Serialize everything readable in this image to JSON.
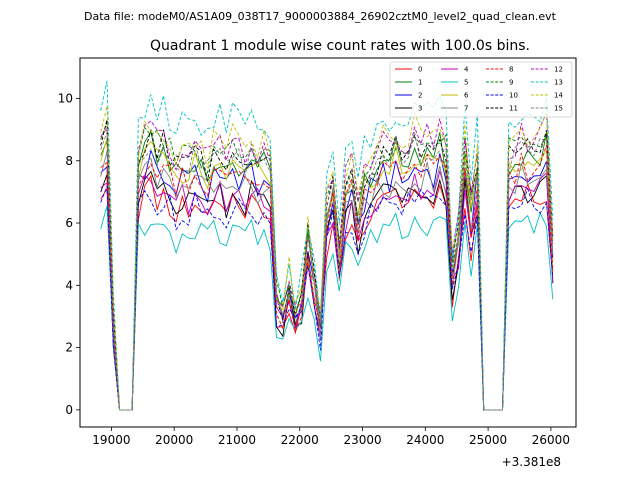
{
  "header": {
    "suptitle": "Data file: modeM0/AS1A09_038T17_9000003884_26902cztM0_level2_quad_clean.evt"
  },
  "chart_data": {
    "type": "line",
    "title": "Quadrant 1 module wise count rates with 100.0s bins.",
    "xlabel": "",
    "ylabel": "",
    "offset_label": "+3.381e8",
    "xlim": [
      18500,
      26400
    ],
    "ylim": [
      -0.55,
      11.3
    ],
    "xticks": [
      19000,
      20000,
      21000,
      22000,
      23000,
      24000,
      25000,
      26000
    ],
    "xtick_labels": [
      "19000",
      "20000",
      "21000",
      "22000",
      "23000",
      "24000",
      "25000",
      "26000"
    ],
    "yticks": [
      0,
      2,
      4,
      6,
      8,
      10
    ],
    "ytick_labels": [
      "0",
      "2",
      "4",
      "6",
      "8",
      "10"
    ],
    "legend_position": "upper-right",
    "x": [
      18830,
      18930,
      19030,
      19130,
      19230,
      19330,
      19430,
      19530,
      19630,
      19730,
      19830,
      19930,
      20030,
      20130,
      20230,
      20330,
      20430,
      20530,
      20630,
      20730,
      20830,
      20930,
      21030,
      21130,
      21230,
      21330,
      21430,
      21530,
      21630,
      21730,
      21830,
      21930,
      22030,
      22130,
      22230,
      22330,
      22430,
      22530,
      22630,
      22730,
      22830,
      22930,
      23030,
      23130,
      23230,
      23330,
      23430,
      23530,
      23630,
      23730,
      23830,
      23930,
      24030,
      24130,
      24230,
      24330,
      24430,
      24530,
      24630,
      24730,
      24830,
      24930,
      25030,
      25130,
      25230,
      25330,
      25430,
      25530,
      25630,
      25730,
      25830,
      25930,
      26030
    ],
    "base_profile": [
      7.0,
      7.3,
      2.4,
      0,
      0,
      0,
      6.5,
      7.0,
      7.2,
      6.8,
      6.9,
      6.6,
      6.3,
      6.6,
      6.4,
      6.7,
      6.5,
      6.3,
      6.6,
      6.7,
      6.4,
      6.8,
      6.6,
      6.5,
      6.7,
      6.4,
      6.6,
      6.3,
      3.0,
      2.6,
      3.5,
      2.6,
      3.0,
      4.5,
      3.4,
      2.2,
      5.3,
      6.1,
      4.0,
      5.9,
      6.2,
      5.1,
      6.0,
      6.3,
      6.4,
      6.7,
      6.6,
      6.9,
      6.8,
      6.7,
      7.0,
      6.8,
      6.9,
      6.7,
      7.1,
      6.6,
      3.7,
      4.7,
      6.8,
      5.2,
      6.5,
      0,
      0,
      0,
      0,
      6.6,
      6.7,
      6.9,
      6.8,
      7.0,
      6.9,
      7.1,
      4.2
    ],
    "series": [
      {
        "name": "0",
        "scale": 1.0,
        "jitter_seed": 11,
        "color": "#ff0000",
        "dash": "solid"
      },
      {
        "name": "1",
        "scale": 1.2,
        "jitter_seed": 23,
        "color": "#008000",
        "dash": "solid"
      },
      {
        "name": "2",
        "scale": 1.12,
        "jitter_seed": 31,
        "color": "#0000ff",
        "dash": "solid"
      },
      {
        "name": "3",
        "scale": 1.03,
        "jitter_seed": 47,
        "color": "#000000",
        "dash": "solid"
      },
      {
        "name": "4",
        "scale": 1.05,
        "jitter_seed": 53,
        "color": "#bf00bf",
        "dash": "solid"
      },
      {
        "name": "5",
        "scale": 0.86,
        "jitter_seed": 61,
        "color": "#00bfbf",
        "dash": "solid"
      },
      {
        "name": "6",
        "scale": 1.17,
        "jitter_seed": 71,
        "color": "#bfbf00",
        "dash": "solid"
      },
      {
        "name": "7",
        "scale": 1.1,
        "jitter_seed": 83,
        "color": "#808080",
        "dash": "solid"
      },
      {
        "name": "8",
        "scale": 1.14,
        "jitter_seed": 97,
        "color": "#ff0000",
        "dash": "dashed"
      },
      {
        "name": "9",
        "scale": 1.27,
        "jitter_seed": 101,
        "color": "#008000",
        "dash": "dashed"
      },
      {
        "name": "10",
        "scale": 0.98,
        "jitter_seed": 113,
        "color": "#0000ff",
        "dash": "dashed"
      },
      {
        "name": "11",
        "scale": 1.24,
        "jitter_seed": 127,
        "color": "#000000",
        "dash": "dashed"
      },
      {
        "name": "12",
        "scale": 1.28,
        "jitter_seed": 131,
        "color": "#bf00bf",
        "dash": "dashed"
      },
      {
        "name": "13",
        "scale": 1.4,
        "jitter_seed": 139,
        "color": "#00bfbf",
        "dash": "dashed"
      },
      {
        "name": "14",
        "scale": 1.3,
        "jitter_seed": 149,
        "color": "#bfbf00",
        "dash": "dashed"
      },
      {
        "name": "15",
        "scale": 1.22,
        "jitter_seed": 157,
        "color": "#808080",
        "dash": "dashed"
      }
    ]
  }
}
